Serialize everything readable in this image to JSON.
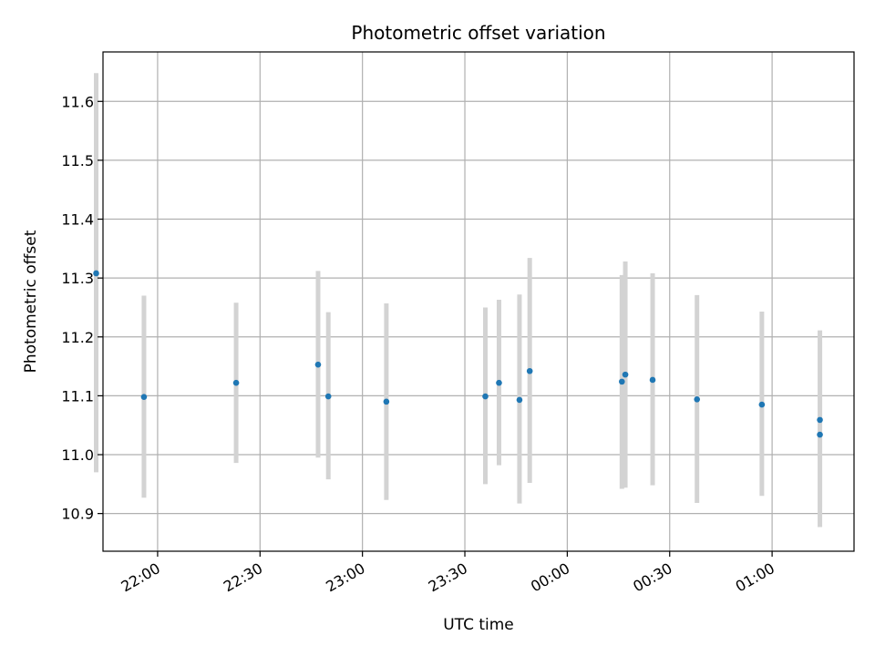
{
  "chart_data": {
    "type": "scatter",
    "title": "Photometric offset variation",
    "xlabel": "UTC time",
    "ylabel": "Photometric offset",
    "xlim": [
      "21:44",
      "01:24"
    ],
    "ylim": [
      10.836,
      11.684
    ],
    "x_ticks": [
      "22:00",
      "22:30",
      "23:00",
      "23:30",
      "00:00",
      "00:30",
      "01:00"
    ],
    "y_ticks": [
      "10.9",
      "11.0",
      "11.1",
      "11.2",
      "11.3",
      "11.4",
      "11.5",
      "11.6"
    ],
    "grid": true,
    "marker_color": "#1f77b4",
    "errorbar_color": "#d3d3d3",
    "points": [
      {
        "t": "21:42",
        "y": 11.308,
        "lo": 10.97,
        "hi": 11.648
      },
      {
        "t": "21:56",
        "y": 11.098,
        "lo": 10.927,
        "hi": 11.27
      },
      {
        "t": "22:23",
        "y": 11.122,
        "lo": 10.986,
        "hi": 11.258
      },
      {
        "t": "22:47",
        "y": 11.153,
        "lo": 10.995,
        "hi": 11.312
      },
      {
        "t": "22:50",
        "y": 11.099,
        "lo": 10.958,
        "hi": 11.242
      },
      {
        "t": "23:07",
        "y": 11.09,
        "lo": 10.923,
        "hi": 11.257
      },
      {
        "t": "23:36",
        "y": 11.099,
        "lo": 10.95,
        "hi": 11.25
      },
      {
        "t": "23:40",
        "y": 11.122,
        "lo": 10.982,
        "hi": 11.263
      },
      {
        "t": "23:46",
        "y": 11.093,
        "lo": 10.917,
        "hi": 11.272
      },
      {
        "t": "23:49",
        "y": 11.142,
        "lo": 10.952,
        "hi": 11.334
      },
      {
        "t": "00:16",
        "y": 11.124,
        "lo": 10.942,
        "hi": 11.305
      },
      {
        "t": "00:17",
        "y": 11.136,
        "lo": 10.944,
        "hi": 11.328
      },
      {
        "t": "00:25",
        "y": 11.127,
        "lo": 10.948,
        "hi": 11.308
      },
      {
        "t": "00:38",
        "y": 11.094,
        "lo": 10.918,
        "hi": 11.271
      },
      {
        "t": "00:57",
        "y": 11.085,
        "lo": 10.93,
        "hi": 11.243
      },
      {
        "t": "01:14",
        "y": 11.059,
        "lo": 10.91,
        "hi": 11.211
      },
      {
        "t": "01:14",
        "y": 11.034,
        "lo": 10.877,
        "hi": 11.192
      }
    ]
  }
}
